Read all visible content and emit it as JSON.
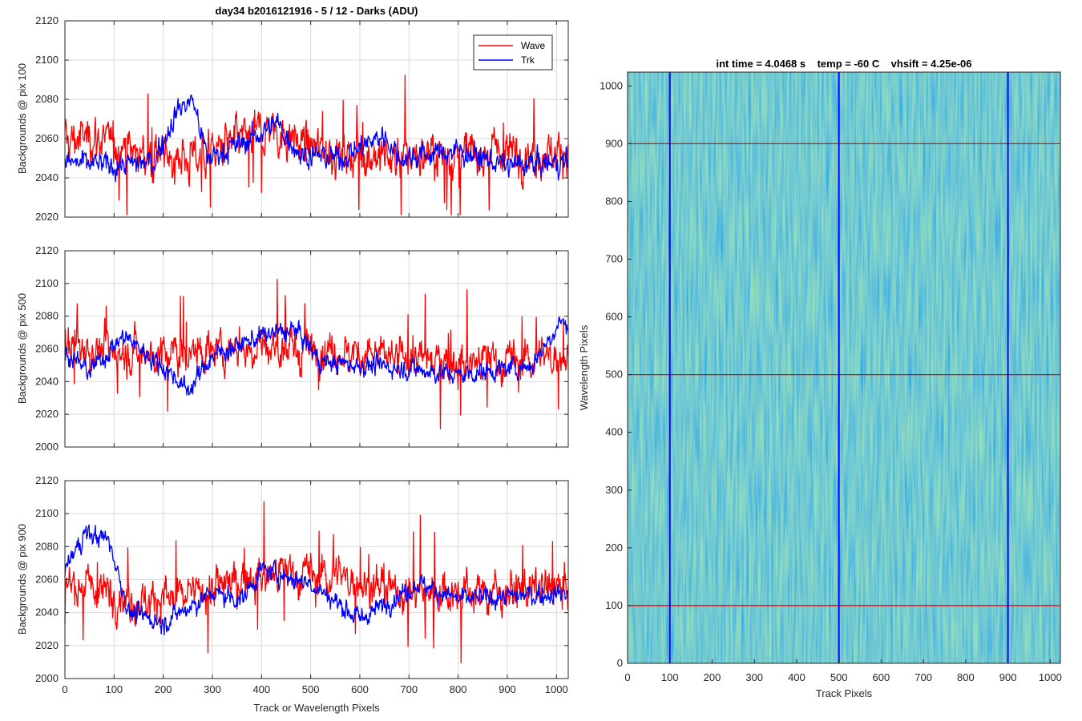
{
  "figure": {
    "title": "day34 b2016121916 - 5 / 12 - Darks (ADU)"
  },
  "colors": {
    "wave": "#ff0000",
    "trk": "#0000ff",
    "grid": "#d9d9d9",
    "axis": "#262626",
    "image_base": "#1e9bb0"
  },
  "chart_data": [
    {
      "type": "line",
      "id": "pix100",
      "title": "day34 b2016121916 - 5 / 12 - Darks (ADU)",
      "ylabel": "Backgrounds @ pix 100",
      "xlabel": "",
      "xlim": [
        0,
        1024
      ],
      "ylim": [
        2020,
        2120
      ],
      "xticks": [
        0,
        100,
        200,
        300,
        400,
        500,
        600,
        700,
        800,
        900,
        1000
      ],
      "yticks": [
        2020,
        2040,
        2060,
        2080,
        2100,
        2120
      ],
      "grid": true,
      "legend": {
        "placement": "top-right",
        "entries": [
          "Wave",
          "Trk"
        ]
      },
      "series": [
        {
          "name": "Wave",
          "color": "#ff0000",
          "base": 2053,
          "noise": 9,
          "profile": [
            [
              0,
              2058
            ],
            [
              50,
              2062
            ],
            [
              150,
              2052
            ],
            [
              250,
              2050
            ],
            [
              350,
              2058
            ],
            [
              420,
              2065
            ],
            [
              480,
              2058
            ],
            [
              560,
              2052
            ],
            [
              650,
              2050
            ],
            [
              800,
              2052
            ],
            [
              1024,
              2054
            ]
          ]
        },
        {
          "name": "Trk",
          "color": "#0000ff",
          "base": 2048,
          "noise": 5,
          "profile": [
            [
              0,
              2048
            ],
            [
              100,
              2046
            ],
            [
              180,
              2048
            ],
            [
              230,
              2075
            ],
            [
              260,
              2080
            ],
            [
              290,
              2050
            ],
            [
              380,
              2060
            ],
            [
              430,
              2068
            ],
            [
              480,
              2052
            ],
            [
              560,
              2050
            ],
            [
              650,
              2062
            ],
            [
              680,
              2050
            ],
            [
              800,
              2054
            ],
            [
              900,
              2046
            ],
            [
              1024,
              2048
            ]
          ]
        }
      ]
    },
    {
      "type": "line",
      "id": "pix500",
      "ylabel": "Backgrounds @ pix 500",
      "xlabel": "",
      "xlim": [
        0,
        1024
      ],
      "ylim": [
        2000,
        2120
      ],
      "xticks": [
        0,
        100,
        200,
        300,
        400,
        500,
        600,
        700,
        800,
        900,
        1000
      ],
      "yticks": [
        2000,
        2020,
        2040,
        2060,
        2080,
        2100,
        2120
      ],
      "grid": true,
      "series": [
        {
          "name": "Wave",
          "color": "#ff0000",
          "base": 2058,
          "noise": 10,
          "profile": [
            [
              0,
              2062
            ],
            [
              200,
              2056
            ],
            [
              400,
              2062
            ],
            [
              500,
              2060
            ],
            [
              700,
              2054
            ],
            [
              900,
              2052
            ],
            [
              1024,
              2056
            ]
          ]
        },
        {
          "name": "Trk",
          "color": "#0000ff",
          "base": 2058,
          "noise": 5,
          "profile": [
            [
              0,
              2058
            ],
            [
              50,
              2046
            ],
            [
              120,
              2068
            ],
            [
              220,
              2044
            ],
            [
              250,
              2034
            ],
            [
              300,
              2056
            ],
            [
              400,
              2068
            ],
            [
              470,
              2072
            ],
            [
              520,
              2052
            ],
            [
              700,
              2048
            ],
            [
              800,
              2044
            ],
            [
              950,
              2050
            ],
            [
              1010,
              2078
            ],
            [
              1024,
              2072
            ]
          ]
        }
      ]
    },
    {
      "type": "line",
      "id": "pix900",
      "ylabel": "Backgrounds @ pix 900",
      "xlabel": "Track or Wavelength Pixels",
      "xlim": [
        0,
        1024
      ],
      "ylim": [
        2000,
        2120
      ],
      "xticks": [
        0,
        100,
        200,
        300,
        400,
        500,
        600,
        700,
        800,
        900,
        1000
      ],
      "yticks": [
        2000,
        2020,
        2040,
        2060,
        2080,
        2100,
        2120
      ],
      "grid": true,
      "series": [
        {
          "name": "Wave",
          "color": "#ff0000",
          "base": 2055,
          "noise": 10,
          "profile": [
            [
              0,
              2058
            ],
            [
              150,
              2048
            ],
            [
              250,
              2050
            ],
            [
              400,
              2064
            ],
            [
              550,
              2062
            ],
            [
              700,
              2052
            ],
            [
              1024,
              2054
            ]
          ]
        },
        {
          "name": "Trk",
          "color": "#0000ff",
          "base": 2055,
          "noise": 5,
          "profile": [
            [
              0,
              2066
            ],
            [
              40,
              2088
            ],
            [
              90,
              2084
            ],
            [
              130,
              2040
            ],
            [
              200,
              2034
            ],
            [
              300,
              2052
            ],
            [
              360,
              2048
            ],
            [
              400,
              2066
            ],
            [
              500,
              2058
            ],
            [
              600,
              2036
            ],
            [
              720,
              2058
            ],
            [
              800,
              2048
            ],
            [
              1024,
              2052
            ]
          ]
        }
      ]
    },
    {
      "type": "heatmap",
      "id": "image",
      "title": "int time = 4.0468 s    temp = -60 C    vhsift = 4.25e-06",
      "xlabel": "Track Pixels",
      "ylabel": "Wavelength Pixels",
      "xlim": [
        0,
        1024
      ],
      "ylim": [
        0,
        1024
      ],
      "xticks": [
        0,
        100,
        200,
        300,
        400,
        500,
        600,
        700,
        800,
        900,
        1000
      ],
      "yticks": [
        0,
        100,
        200,
        300,
        400,
        500,
        600,
        700,
        800,
        900,
        1000
      ],
      "hlines": [
        100,
        500,
        900
      ],
      "vlines": [
        100,
        500,
        900
      ],
      "hline_color": "#ff0000",
      "vline_color": "#0000ff"
    }
  ]
}
